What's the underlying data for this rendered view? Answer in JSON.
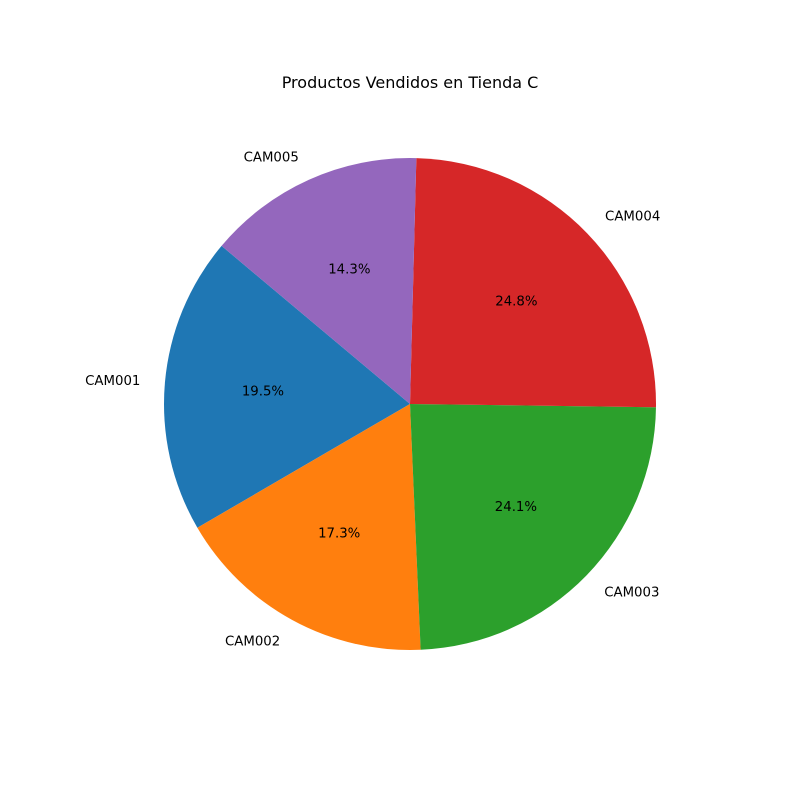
{
  "chart_data": {
    "type": "pie",
    "title": "Productos Vendidos en Tienda C",
    "categories": [
      "CAM001",
      "CAM002",
      "CAM003",
      "CAM004",
      "CAM005"
    ],
    "values": [
      19.5,
      17.3,
      24.1,
      24.8,
      14.3
    ],
    "value_labels": [
      "19.5%",
      "17.3%",
      "24.1%",
      "24.8%",
      "14.3%"
    ],
    "colors": [
      "#1f77b4",
      "#ff7f0e",
      "#2ca02c",
      "#d62728",
      "#9467bd"
    ],
    "start_angle_deg": 140,
    "direction": "counterclockwise",
    "legend": "none"
  }
}
